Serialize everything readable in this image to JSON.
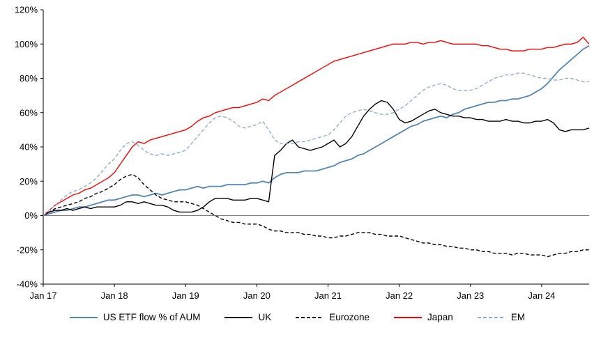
{
  "chart_data": {
    "type": "line",
    "title": "",
    "y_tick_suffix": "%",
    "ylim": [
      -40,
      120
    ],
    "y_ticks": [
      120,
      100,
      80,
      60,
      40,
      20,
      0,
      -20,
      -40
    ],
    "x_tick_labels": [
      "Jan 17",
      "Jan 18",
      "Jan 19",
      "Jan 20",
      "Jan 21",
      "Jan 22",
      "Jan 23",
      "Jan 24"
    ],
    "x_tick_positions": [
      0,
      12,
      24,
      36,
      48,
      60,
      72,
      84
    ],
    "x_unit": "months from Jan 2017, through Sep 2024",
    "grid": "zero-line-only",
    "zero_line_color": "#808080",
    "axis_color": "#000000",
    "legend_position": "bottom",
    "series": [
      {
        "name": "US ETF flow % of AUM",
        "color": "#5585B5",
        "dash": "none",
        "width": 1.8,
        "values": [
          0,
          1,
          2,
          3,
          3,
          4,
          5,
          5,
          6,
          7,
          8,
          9,
          9,
          10,
          11,
          12,
          12,
          11,
          12,
          13,
          12,
          13,
          14,
          15,
          15,
          16,
          17,
          16,
          17,
          17,
          17,
          18,
          18,
          18,
          18,
          19,
          19,
          20,
          19,
          22,
          24,
          25,
          25,
          25,
          26,
          26,
          26,
          27,
          28,
          29,
          31,
          32,
          33,
          35,
          36,
          38,
          40,
          42,
          44,
          46,
          48,
          50,
          52,
          53,
          55,
          56,
          57,
          58,
          57,
          59,
          60,
          62,
          63,
          64,
          65,
          66,
          66,
          67,
          67,
          68,
          68,
          69,
          70,
          72,
          74,
          77,
          81,
          85,
          88,
          91,
          94,
          97,
          99
        ]
      },
      {
        "name": "UK",
        "color": "#000000",
        "dash": "none",
        "width": 1.4,
        "values": [
          0,
          2,
          3,
          3,
          4,
          3,
          4,
          5,
          4,
          5,
          5,
          5,
          5,
          6,
          8,
          8,
          7,
          8,
          7,
          6,
          6,
          5,
          3,
          2,
          2,
          2,
          3,
          5,
          8,
          10,
          10,
          10,
          9,
          9,
          9,
          10,
          10,
          9,
          8,
          35,
          38,
          42,
          44,
          40,
          39,
          38,
          39,
          40,
          42,
          44,
          40,
          42,
          46,
          52,
          58,
          62,
          65,
          67,
          66,
          62,
          56,
          54,
          55,
          57,
          59,
          61,
          62,
          60,
          59,
          58,
          58,
          57,
          57,
          56,
          56,
          55,
          55,
          55,
          56,
          55,
          55,
          54,
          54,
          55,
          55,
          56,
          54,
          50,
          49,
          50,
          50,
          50,
          51
        ]
      },
      {
        "name": "Eurozone",
        "color": "#000000",
        "dash": "5,3",
        "width": 1.4,
        "values": [
          0,
          2,
          4,
          5,
          6,
          7,
          8,
          10,
          11,
          13,
          14,
          16,
          18,
          21,
          23,
          24,
          22,
          18,
          15,
          12,
          10,
          9,
          8,
          8,
          8,
          7,
          6,
          4,
          2,
          0,
          -2,
          -3,
          -4,
          -4,
          -5,
          -5,
          -5,
          -6,
          -8,
          -9,
          -9,
          -10,
          -10,
          -10,
          -11,
          -11,
          -12,
          -12,
          -13,
          -13,
          -12,
          -12,
          -11,
          -10,
          -10,
          -10,
          -11,
          -11,
          -12,
          -12,
          -12,
          -13,
          -14,
          -15,
          -16,
          -16,
          -17,
          -17,
          -18,
          -18,
          -19,
          -19,
          -20,
          -20,
          -21,
          -21,
          -22,
          -22,
          -22,
          -23,
          -22,
          -22,
          -23,
          -23,
          -23,
          -24,
          -23,
          -22,
          -22,
          -21,
          -21,
          -20,
          -20
        ]
      },
      {
        "name": "Japan",
        "color": "#FF0000",
        "dash": "none",
        "width": 1.4,
        "values": [
          0,
          3,
          6,
          8,
          10,
          12,
          13,
          15,
          16,
          18,
          20,
          22,
          25,
          30,
          35,
          40,
          43,
          42,
          44,
          45,
          46,
          47,
          48,
          49,
          50,
          52,
          55,
          57,
          58,
          60,
          61,
          62,
          63,
          63,
          64,
          65,
          66,
          68,
          67,
          70,
          72,
          74,
          76,
          78,
          80,
          82,
          84,
          86,
          88,
          90,
          91,
          92,
          93,
          94,
          95,
          96,
          97,
          98,
          99,
          100,
          100,
          100,
          101,
          101,
          100,
          101,
          101,
          102,
          101,
          100,
          100,
          100,
          100,
          100,
          99,
          99,
          98,
          97,
          97,
          96,
          96,
          96,
          97,
          97,
          97,
          98,
          98,
          99,
          100,
          100,
          101,
          104,
          100
        ]
      },
      {
        "name": "EM",
        "color": "#8FAFD0",
        "dash": "5,3",
        "width": 1.4,
        "values": [
          0,
          3,
          6,
          9,
          12,
          14,
          15,
          17,
          19,
          22,
          26,
          30,
          33,
          38,
          42,
          43,
          41,
          38,
          36,
          35,
          36,
          35,
          36,
          37,
          38,
          42,
          46,
          50,
          54,
          57,
          58,
          57,
          55,
          52,
          51,
          52,
          53,
          55,
          50,
          44,
          42,
          42,
          42,
          43,
          43,
          44,
          45,
          46,
          47,
          50,
          54,
          58,
          60,
          61,
          62,
          61,
          60,
          59,
          59,
          60,
          62,
          64,
          67,
          70,
          73,
          75,
          76,
          77,
          76,
          74,
          73,
          73,
          73,
          74,
          76,
          78,
          80,
          81,
          82,
          82,
          83,
          83,
          82,
          81,
          80,
          80,
          79,
          79,
          80,
          80,
          79,
          78,
          78
        ]
      }
    ]
  }
}
